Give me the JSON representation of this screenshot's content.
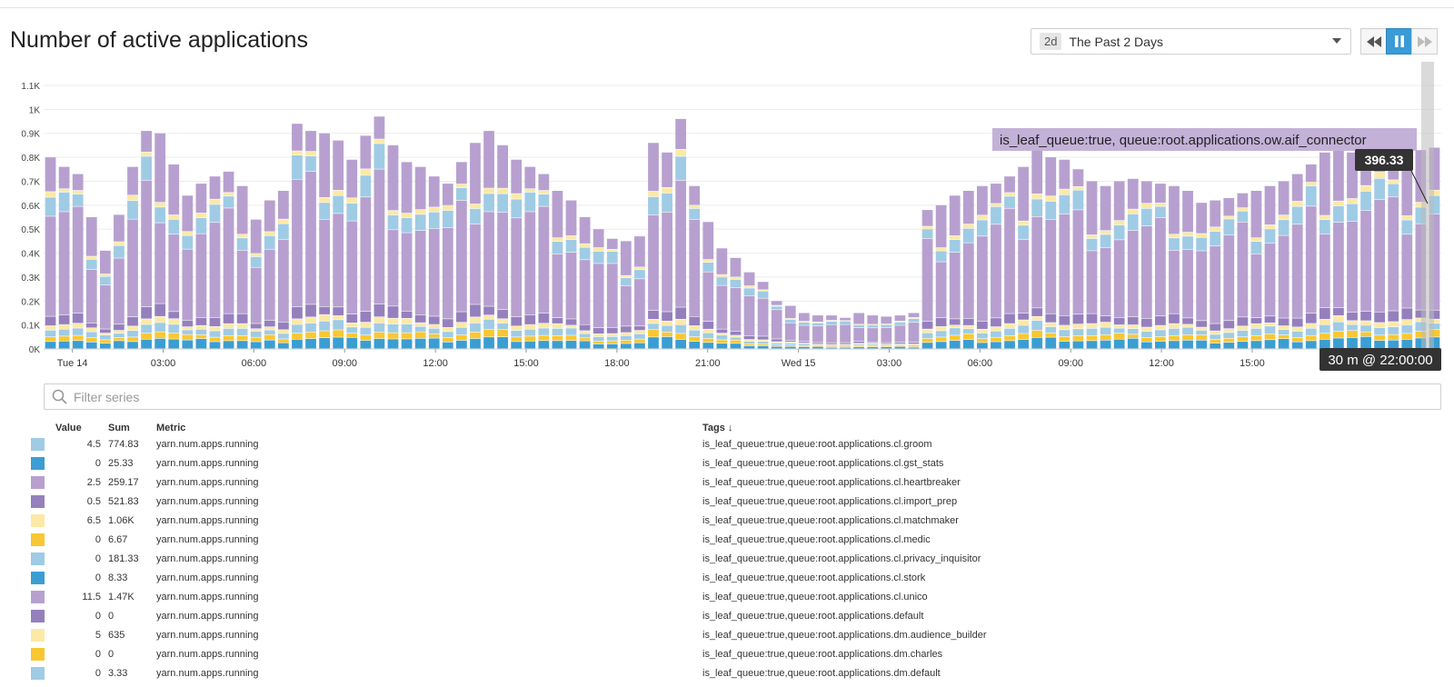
{
  "page_title": "Number of active applications",
  "timeframe": {
    "badge": "2d",
    "label": "The Past 2 Days"
  },
  "filter": {
    "placeholder": "Filter series"
  },
  "legend_headers": {
    "value": "Value",
    "sum": "Sum",
    "metric": "Metric",
    "tags": "Tags ↓"
  },
  "legend_rows": [
    {
      "value": "4.5",
      "sum": "774.83",
      "metric": "yarn.num.apps.running",
      "tags": "is_leaf_queue:true,queue:root.applications.cl.groom",
      "color": "#9fcbe5"
    },
    {
      "value": "0",
      "sum": "25.33",
      "metric": "yarn.num.apps.running",
      "tags": "is_leaf_queue:true,queue:root.applications.cl.gst_stats",
      "color": "#3b9ed3"
    },
    {
      "value": "2.5",
      "sum": "259.17",
      "metric": "yarn.num.apps.running",
      "tags": "is_leaf_queue:true,queue:root.applications.cl.heartbreaker",
      "color": "#b7a0cf"
    },
    {
      "value": "0.5",
      "sum": "521.83",
      "metric": "yarn.num.apps.running",
      "tags": "is_leaf_queue:true,queue:root.applications.cl.import_prep",
      "color": "#9580bd"
    },
    {
      "value": "6.5",
      "sum": "1.06K",
      "metric": "yarn.num.apps.running",
      "tags": "is_leaf_queue:true,queue:root.applications.cl.matchmaker",
      "color": "#fbe9a5"
    },
    {
      "value": "0",
      "sum": "6.67",
      "metric": "yarn.num.apps.running",
      "tags": "is_leaf_queue:true,queue:root.applications.cl.medic",
      "color": "#f9c731"
    },
    {
      "value": "0",
      "sum": "181.33",
      "metric": "yarn.num.apps.running",
      "tags": "is_leaf_queue:true,queue:root.applications.cl.privacy_inquisitor",
      "color": "#9fcbe5"
    },
    {
      "value": "0",
      "sum": "8.33",
      "metric": "yarn.num.apps.running",
      "tags": "is_leaf_queue:true,queue:root.applications.cl.stork",
      "color": "#3b9ed3"
    },
    {
      "value": "11.5",
      "sum": "1.47K",
      "metric": "yarn.num.apps.running",
      "tags": "is_leaf_queue:true,queue:root.applications.cl.unico",
      "color": "#b7a0cf"
    },
    {
      "value": "0",
      "sum": "0",
      "metric": "yarn.num.apps.running",
      "tags": "is_leaf_queue:true,queue:root.applications.default",
      "color": "#9580bd"
    },
    {
      "value": "5",
      "sum": "635",
      "metric": "yarn.num.apps.running",
      "tags": "is_leaf_queue:true,queue:root.applications.dm.audience_builder",
      "color": "#fbe9a5"
    },
    {
      "value": "0",
      "sum": "0",
      "metric": "yarn.num.apps.running",
      "tags": "is_leaf_queue:true,queue:root.applications.dm.charles",
      "color": "#f9c731"
    },
    {
      "value": "0",
      "sum": "3.33",
      "metric": "yarn.num.apps.running",
      "tags": "is_leaf_queue:true,queue:root.applications.dm.default",
      "color": "#9fcbe5"
    }
  ],
  "hover": {
    "series_label": "is_leaf_queue:true, queue:root.applications.ow.aif_connector",
    "value": "396.33",
    "time": "30 m @ 22:00:00"
  },
  "chart_data": {
    "type": "bar",
    "stacked": true,
    "ylim": [
      0,
      1100
    ],
    "y_ticks": [
      "0K",
      "0.1K",
      "0.2K",
      "0.3K",
      "0.4K",
      "0.5K",
      "0.6K",
      "0.7K",
      "0.8K",
      "0.9K",
      "1K",
      "1.1K"
    ],
    "x_ticks": [
      "Tue 14",
      "03:00",
      "06:00",
      "09:00",
      "12:00",
      "15:00",
      "18:00",
      "21:00",
      "Wed 15",
      "03:00",
      "06:00",
      "09:00",
      "12:00",
      "15:00",
      "18:00"
    ],
    "bucket": "30 m",
    "totals": [
      800,
      760,
      730,
      550,
      410,
      560,
      760,
      910,
      900,
      770,
      640,
      690,
      720,
      740,
      680,
      540,
      620,
      660,
      940,
      910,
      900,
      870,
      790,
      890,
      970,
      850,
      780,
      760,
      720,
      690,
      780,
      860,
      910,
      850,
      790,
      760,
      730,
      660,
      620,
      550,
      500,
      460,
      450,
      470,
      860,
      820,
      960,
      680,
      530,
      420,
      380,
      320,
      280,
      200,
      180,
      150,
      140,
      140,
      130,
      150,
      140,
      135,
      140,
      150,
      580,
      600,
      640,
      660,
      680,
      690,
      720,
      760,
      850,
      800,
      790,
      750,
      700,
      680,
      700,
      710,
      700,
      690,
      680,
      660,
      610,
      620,
      630,
      650,
      660,
      680,
      700,
      730,
      770,
      820,
      850,
      820,
      830,
      850,
      800,
      790,
      830,
      840
    ],
    "series_colors": [
      "#3b9ed3",
      "#f9c731",
      "#9fcbe5",
      "#fbe9a5",
      "#9580bd",
      "#b7a0cf",
      "#9fcbe5",
      "#fbe9a5",
      "#b7a0cf"
    ]
  }
}
